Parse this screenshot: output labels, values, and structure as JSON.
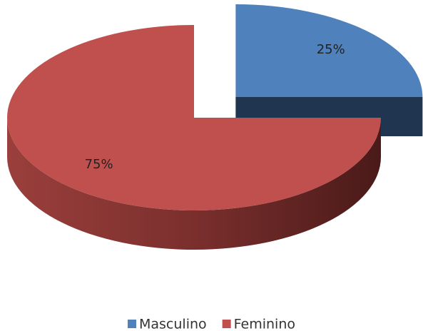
{
  "chart_data": {
    "type": "pie",
    "categories": [
      "Masculino",
      "Feminino"
    ],
    "values": [
      25,
      75
    ],
    "value_labels": [
      "25%",
      "75%"
    ],
    "colors": [
      "#4f81bd",
      "#c0504d"
    ],
    "legend": "bottom"
  }
}
